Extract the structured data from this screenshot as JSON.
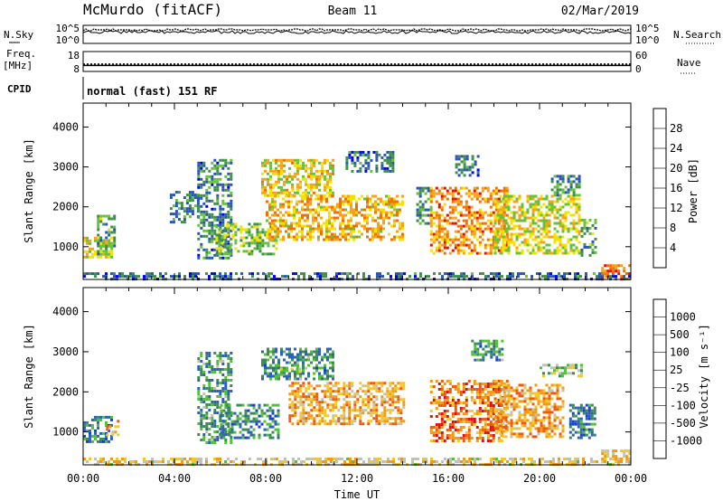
{
  "header": {
    "station": "McMurdo (fitACF)",
    "beam": "Beam 11",
    "date": "02/Mar/2019"
  },
  "noise_panel": {
    "left_label": "N.Sky",
    "right_label": "N.Search",
    "left_ticks": [
      "10^5",
      "10^0"
    ],
    "right_ticks": [
      "10^5",
      "10^0"
    ]
  },
  "freq_panel": {
    "left_label_1": "Freq.",
    "left_label_2": "[MHz]",
    "right_label": "Nave",
    "left_ticks": [
      "18",
      "8"
    ],
    "right_ticks": [
      "60",
      "0"
    ],
    "freq_mhz": 11,
    "nave": 22
  },
  "cpid_panel": {
    "label": "CPID",
    "text": "normal (fast) 151 RF"
  },
  "chart_data": [
    {
      "type": "heatmap",
      "name": "power",
      "ylabel": "Slant Range [km]",
      "xlabel": "Time UT",
      "x_ticks": [
        "00:00",
        "04:00",
        "08:00",
        "12:00",
        "16:00",
        "20:00",
        "00:00"
      ],
      "xlim_hours": [
        0,
        24
      ],
      "ylim_km": [
        180,
        4600
      ],
      "y_ticks": [
        "1000",
        "2000",
        "3000",
        "4000"
      ],
      "colorbar": {
        "label": "Power [dB]",
        "ticks": [
          "4",
          "8",
          "12",
          "16",
          "20",
          "24",
          "28"
        ],
        "range": [
          0,
          32
        ],
        "colors": [
          "#0000ff",
          "#2a55b8",
          "#3f8f4a",
          "#66c23a",
          "#f2e200",
          "#f8a21c",
          "#f07000",
          "#e21000"
        ]
      },
      "regions": [
        {
          "t0": 0.0,
          "t1": 24.0,
          "r0": 200,
          "r1": 360,
          "level": 0.22
        },
        {
          "t0": 22.7,
          "t1": 23.9,
          "r0": 200,
          "r1": 560,
          "level": 0.8
        },
        {
          "t0": 0.0,
          "t1": 1.2,
          "r0": 750,
          "r1": 1250,
          "level": 0.55
        },
        {
          "t0": 0.6,
          "t1": 1.4,
          "r0": 800,
          "r1": 1800,
          "level": 0.35
        },
        {
          "t0": 3.8,
          "t1": 5.0,
          "r0": 1600,
          "r1": 2400,
          "level": 0.3
        },
        {
          "t0": 5.0,
          "t1": 6.5,
          "r0": 700,
          "r1": 3200,
          "level": 0.28
        },
        {
          "t0": 5.8,
          "t1": 8.5,
          "r0": 850,
          "r1": 1600,
          "level": 0.45
        },
        {
          "t0": 7.8,
          "t1": 11.0,
          "r0": 2300,
          "r1": 3200,
          "level": 0.6
        },
        {
          "t0": 8.0,
          "t1": 14.0,
          "r0": 1200,
          "r1": 2300,
          "level": 0.65
        },
        {
          "t0": 11.5,
          "t1": 13.6,
          "r0": 2900,
          "r1": 3400,
          "level": 0.25
        },
        {
          "t0": 14.6,
          "t1": 15.2,
          "r0": 1600,
          "r1": 2500,
          "level": 0.3
        },
        {
          "t0": 15.2,
          "t1": 18.6,
          "r0": 800,
          "r1": 2500,
          "level": 0.75
        },
        {
          "t0": 16.3,
          "t1": 17.3,
          "r0": 2800,
          "r1": 3300,
          "level": 0.25
        },
        {
          "t0": 18.0,
          "t1": 21.7,
          "r0": 850,
          "r1": 2300,
          "level": 0.55
        },
        {
          "t0": 20.5,
          "t1": 21.8,
          "r0": 2300,
          "r1": 2800,
          "level": 0.3
        },
        {
          "t0": 21.8,
          "t1": 22.4,
          "r0": 800,
          "r1": 1700,
          "level": 0.35
        }
      ]
    },
    {
      "type": "heatmap",
      "name": "velocity",
      "ylabel": "Slant Range [km]",
      "xlabel": "Time UT",
      "x_ticks": [
        "00:00",
        "04:00",
        "08:00",
        "12:00",
        "16:00",
        "20:00",
        "00:00"
      ],
      "xlim_hours": [
        0,
        24
      ],
      "ylim_km": [
        180,
        4600
      ],
      "y_ticks": [
        "1000",
        "2000",
        "3000",
        "4000"
      ],
      "colorbar": {
        "label": "Velocity [m s⁻¹]",
        "ticks": [
          "1000",
          "500",
          "100",
          "25",
          "-25",
          "-100",
          "-500",
          "-1000"
        ],
        "colors": [
          "#1c3fc8",
          "#2e62b8",
          "#3b8c56",
          "#54bf38",
          "#c2c2b4",
          "#f3c62a",
          "#f19a16",
          "#ee5a10",
          "#e01010"
        ]
      },
      "regions": [
        {
          "t0": 0.0,
          "t1": 24.0,
          "r0": 200,
          "r1": 360,
          "level": 0.6
        },
        {
          "t0": 22.7,
          "t1": 23.9,
          "r0": 250,
          "r1": 560,
          "level": 0.6
        },
        {
          "t0": 0.0,
          "t1": 1.2,
          "r0": 750,
          "r1": 1400,
          "level": 0.22
        },
        {
          "t0": 1.0,
          "t1": 1.5,
          "r0": 900,
          "r1": 1300,
          "level": 0.7
        },
        {
          "t0": 5.0,
          "t1": 6.5,
          "r0": 700,
          "r1": 3000,
          "level": 0.3
        },
        {
          "t0": 6.0,
          "t1": 8.5,
          "r0": 850,
          "r1": 1700,
          "level": 0.25
        },
        {
          "t0": 7.8,
          "t1": 11.0,
          "r0": 2300,
          "r1": 3100,
          "level": 0.28
        },
        {
          "t0": 8.5,
          "t1": 9.5,
          "r0": 2400,
          "r1": 2600,
          "level": 0.45
        },
        {
          "t0": 9.0,
          "t1": 14.0,
          "r0": 1200,
          "r1": 2250,
          "level": 0.7
        },
        {
          "t0": 15.2,
          "t1": 18.6,
          "r0": 800,
          "r1": 2300,
          "level": 0.78
        },
        {
          "t0": 17.0,
          "t1": 18.4,
          "r0": 2800,
          "r1": 3300,
          "level": 0.28
        },
        {
          "t0": 18.0,
          "t1": 21.0,
          "r0": 850,
          "r1": 2200,
          "level": 0.7
        },
        {
          "t0": 20.0,
          "t1": 21.8,
          "r0": 2400,
          "r1": 2700,
          "level": 0.45
        },
        {
          "t0": 21.3,
          "t1": 22.4,
          "r0": 850,
          "r1": 1700,
          "level": 0.22
        }
      ]
    }
  ]
}
